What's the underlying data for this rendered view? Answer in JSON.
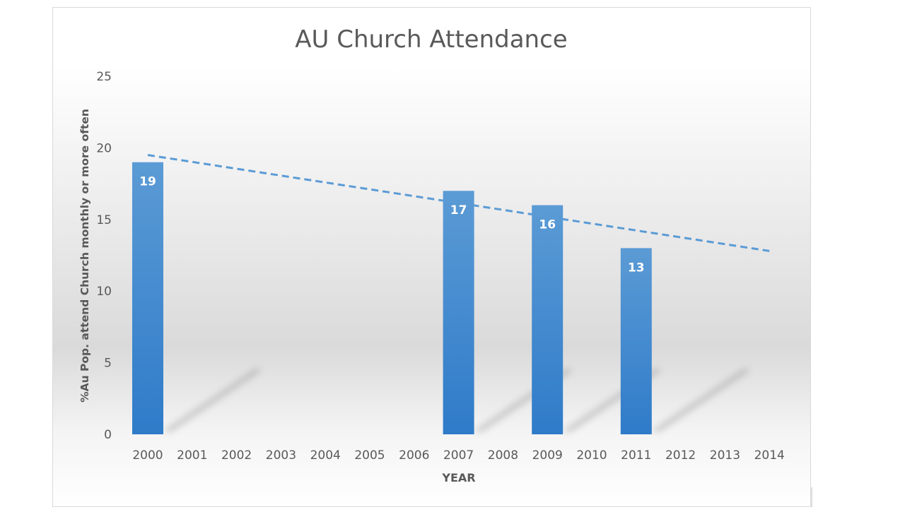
{
  "chart_data": {
    "type": "bar",
    "title": "AU Church Attendance",
    "xlabel": "YEAR",
    "ylabel": "%Au Pop. attend Church monthly or more often",
    "categories": [
      "2000",
      "2001",
      "2002",
      "2003",
      "2004",
      "2005",
      "2006",
      "2007",
      "2008",
      "2009",
      "2010",
      "2011",
      "2012",
      "2013",
      "2014"
    ],
    "values": [
      19,
      null,
      null,
      null,
      null,
      null,
      null,
      17,
      null,
      16,
      null,
      13,
      null,
      null,
      null
    ],
    "data_labels": [
      "19",
      "",
      "",
      "",
      "",
      "",
      "",
      "17",
      "",
      "16",
      "",
      "13",
      "",
      "",
      ""
    ],
    "ylim": [
      0,
      25
    ],
    "yticks": [
      "0",
      "5",
      "10",
      "15",
      "20",
      "25"
    ],
    "grid": false,
    "legend": "none",
    "trendline": {
      "type": "linear",
      "start_value": 19.5,
      "end_value": 12.8,
      "style": "dashed"
    },
    "colors": {
      "bar": "#4a8fd6",
      "bar_dark": "#2f7bc9",
      "trend": "#5b9bd5",
      "text": "#595959"
    }
  }
}
